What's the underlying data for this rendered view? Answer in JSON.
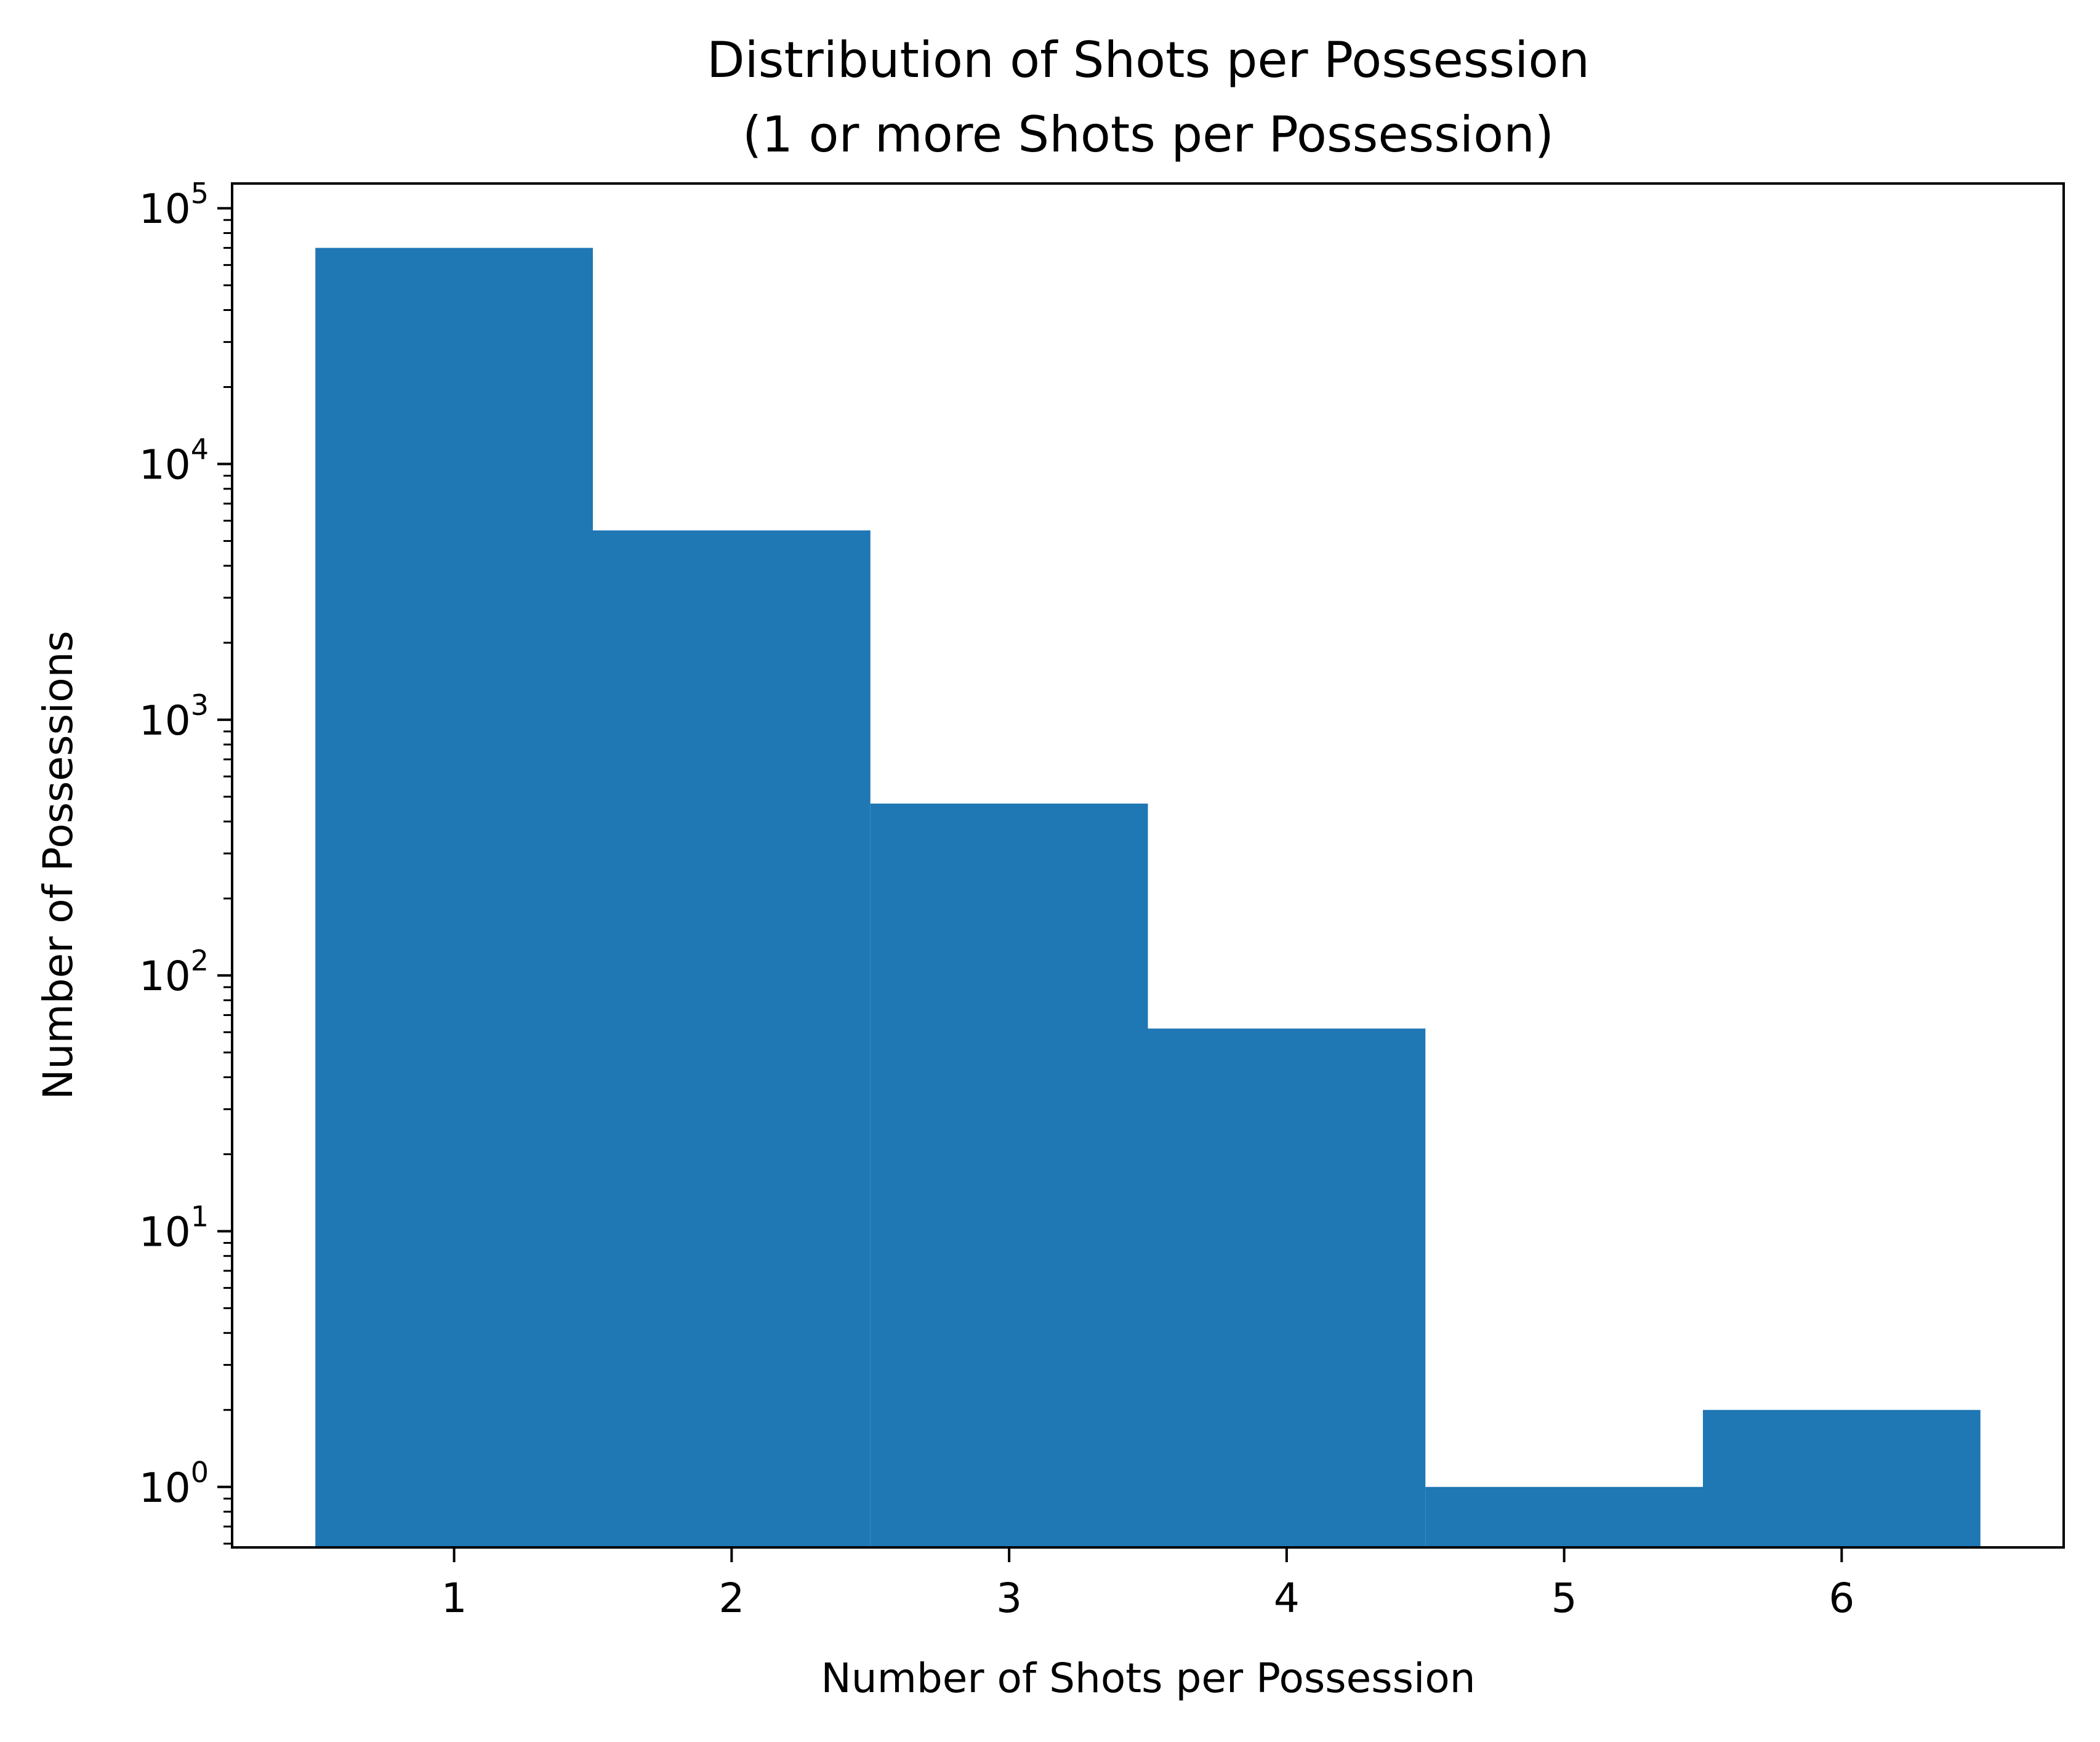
{
  "chart_data": {
    "type": "bar",
    "title": "Distribution of Shots per Possession",
    "subtitle": "(1 or more Shots per Possession)",
    "xlabel": "Number of Shots per Possession",
    "ylabel": "Number of Possessions",
    "yscale": "log",
    "xlim": [
      0.2,
      6.8
    ],
    "ylim": [
      0.58,
      125000
    ],
    "grid": false,
    "legend": "none",
    "bar_color": "#1f77b4",
    "bins": [
      {
        "x": 1,
        "left": 0.5,
        "right": 1.5,
        "value": 70000
      },
      {
        "x": 2,
        "left": 1.5,
        "right": 2.5,
        "value": 5500
      },
      {
        "x": 3,
        "left": 2.5,
        "right": 3.5,
        "value": 470
      },
      {
        "x": 4,
        "left": 3.5,
        "right": 4.5,
        "value": 62
      },
      {
        "x": 5,
        "left": 4.5,
        "right": 5.5,
        "value": 1
      },
      {
        "x": 6,
        "left": 5.5,
        "right": 6.5,
        "value": 2
      }
    ],
    "x_ticks": [
      {
        "value": 1,
        "label": "1"
      },
      {
        "value": 2,
        "label": "2"
      },
      {
        "value": 3,
        "label": "3"
      },
      {
        "value": 4,
        "label": "4"
      },
      {
        "value": 5,
        "label": "5"
      },
      {
        "value": 6,
        "label": "6"
      }
    ],
    "y_ticks": [
      {
        "value": 1,
        "base": "10",
        "exp": "0"
      },
      {
        "value": 10,
        "base": "10",
        "exp": "1"
      },
      {
        "value": 100,
        "base": "10",
        "exp": "2"
      },
      {
        "value": 1000,
        "base": "10",
        "exp": "3"
      },
      {
        "value": 10000,
        "base": "10",
        "exp": "4"
      },
      {
        "value": 100000,
        "base": "10",
        "exp": "5"
      }
    ]
  }
}
